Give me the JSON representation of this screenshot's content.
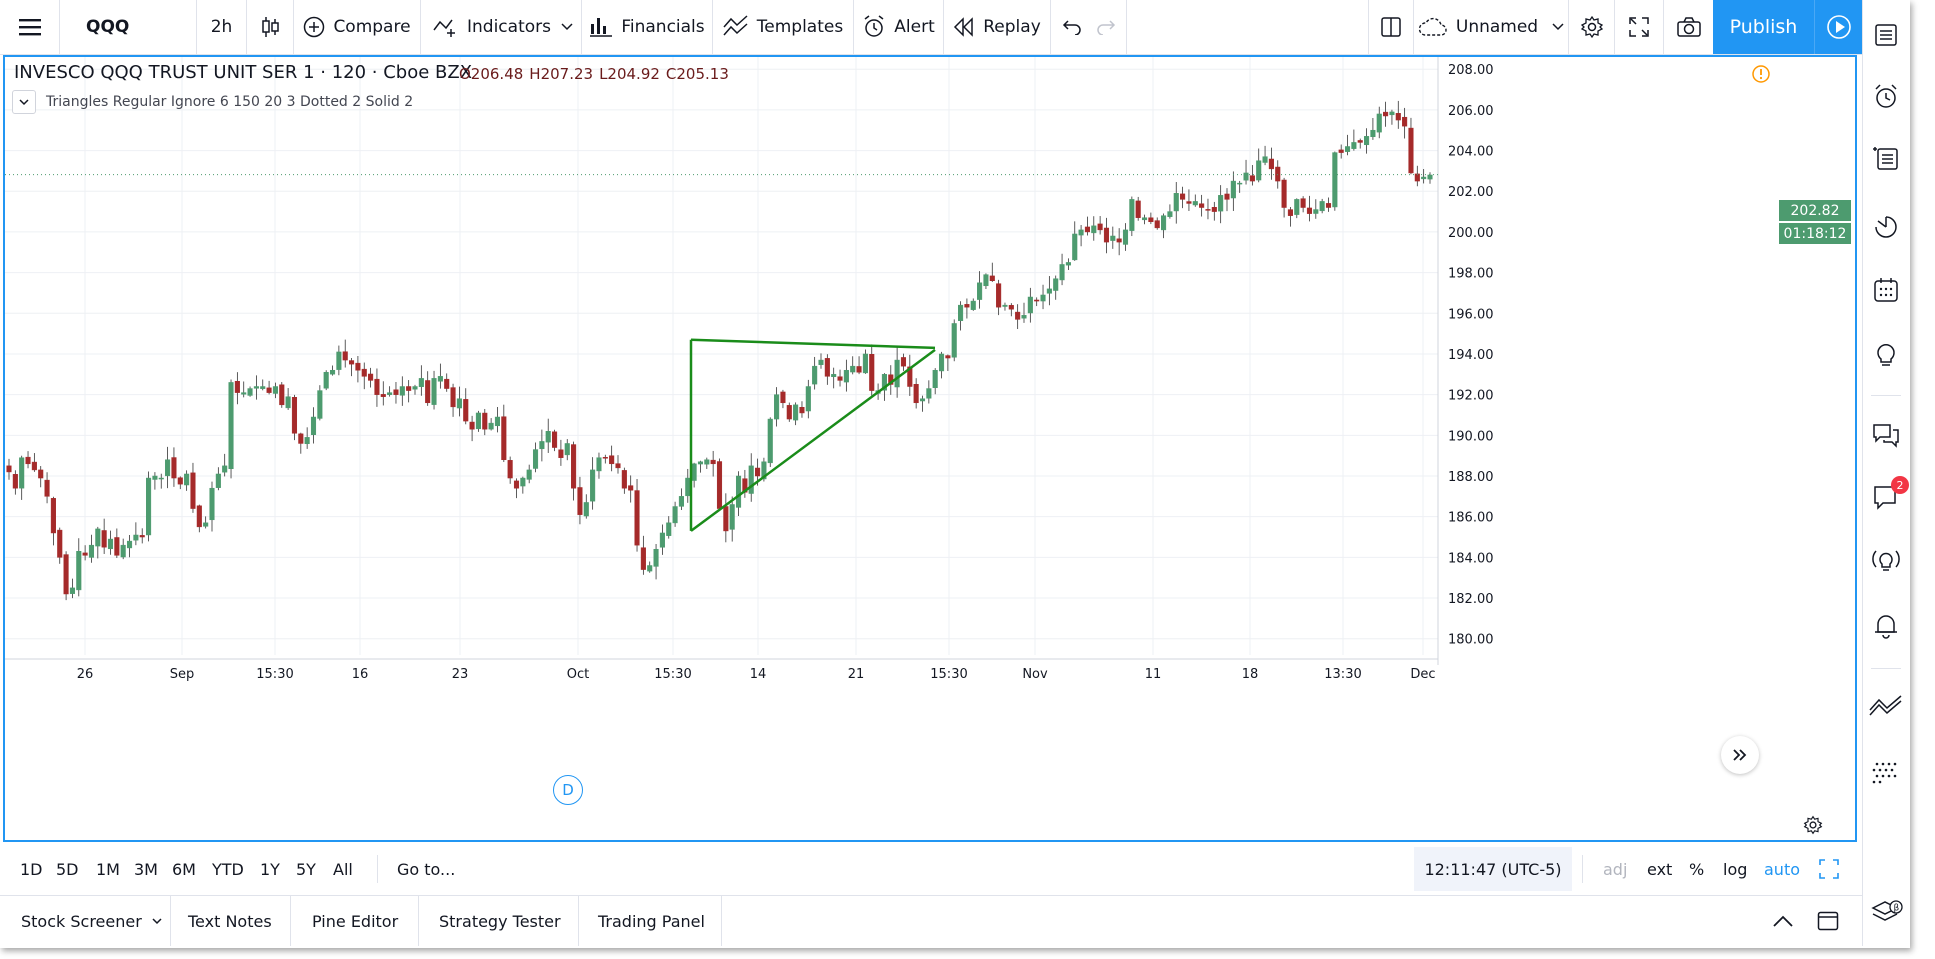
{
  "toolbar": {
    "symbol": "QQQ",
    "interval": "2h",
    "compare": "Compare",
    "indicators": "Indicators",
    "financials": "Financials",
    "templates": "Templates",
    "alert": "Alert",
    "replay": "Replay",
    "layout_name": "Unnamed",
    "publish": "Publish"
  },
  "legend": {
    "title": "INVESCO QQQ TRUST UNIT SER 1 · 120 · Cboe BZX",
    "open": "O206.48",
    "high": "H207.23",
    "low": "L204.92",
    "close": "C205.13",
    "indicator": "Triangles Regular Ignore 6 150 20 3 Dotted 2 Solid 2"
  },
  "price_tags": {
    "last_price": "202.82",
    "countdown": "01:18:12"
  },
  "markers": {
    "dividend": "D"
  },
  "colors": {
    "accent": "#2196f3",
    "up_candle": "#4d9b6f",
    "down_candle": "#a52a2a",
    "triangle": "#1a8c1a",
    "warning": "#ff9800",
    "badge": "#f23645"
  },
  "timeframes": [
    "1D",
    "5D",
    "1M",
    "3M",
    "6M",
    "YTD",
    "1Y",
    "5Y",
    "All"
  ],
  "goto": "Go to...",
  "clock": "12:11:47 (UTC-5)",
  "scale_options": {
    "adj": "adj",
    "ext": "ext",
    "percent": "%",
    "log": "log",
    "auto": "auto"
  },
  "bottom_tabs": [
    "Stock Screener",
    "Text Notes",
    "Pine Editor",
    "Strategy Tester",
    "Trading Panel"
  ],
  "sidebar": {
    "chat_badge": "2"
  },
  "chart_data": {
    "type": "candlestick",
    "y_axis_ticks": [
      "208.00",
      "206.00",
      "204.00",
      "202.00",
      "200.00",
      "198.00",
      "196.00",
      "194.00",
      "192.00",
      "190.00",
      "188.00",
      "186.00",
      "184.00",
      "182.00",
      "180.00"
    ],
    "ylim": [
      179.2,
      208.6
    ],
    "x_axis_ticks": [
      "26",
      "Sep",
      "15:30",
      "16",
      "23",
      "Oct",
      "15:30",
      "14",
      "21",
      "15:30",
      "Nov",
      "11",
      "18",
      "13:30",
      "Dec"
    ],
    "grid": true,
    "close_series": [
      188.2,
      187.4,
      188.9,
      188.6,
      188.3,
      187.9,
      187.0,
      185.2,
      184.0,
      182.2,
      182.5,
      184.3,
      184.1,
      184.6,
      185.4,
      184.5,
      184.9,
      184.1,
      184.6,
      184.8,
      185.1,
      185.0,
      187.9,
      188.0,
      187.9,
      188.8,
      187.9,
      187.6,
      188.1,
      186.4,
      185.5,
      185.7,
      187.4,
      188.1,
      188.5,
      192.6,
      192.1,
      192.1,
      192.3,
      192.4,
      192.4,
      192.1,
      192.4,
      191.5,
      191.9,
      190.1,
      189.6,
      189.9,
      190.9,
      192.2,
      193.1,
      193.2,
      194.1,
      193.7,
      193.5,
      193.2,
      192.9,
      192.7,
      192.0,
      191.9,
      192.1,
      192.0,
      192.4,
      192.2,
      192.4,
      192.8,
      191.6,
      192.8,
      192.9,
      192.3,
      191.4,
      191.8,
      190.7,
      190.3,
      191.1,
      190.3,
      190.6,
      190.9,
      188.8,
      187.9,
      187.4,
      187.9,
      188.3,
      189.3,
      189.7,
      190.2,
      189.4,
      188.9,
      189.6,
      187.4,
      186.1,
      186.7,
      188.3,
      188.9,
      188.9,
      188.6,
      188.4,
      187.4,
      187.3,
      184.6,
      183.4,
      183.6,
      184.4,
      185.2,
      185.7,
      186.5,
      187.0,
      187.9,
      188.6,
      188.7,
      188.8,
      188.6,
      186.4,
      185.3,
      186.6,
      188.0,
      187.2,
      188.5,
      188.0,
      188.7,
      190.8,
      192.0,
      191.6,
      190.8,
      191.5,
      191.1,
      192.4,
      193.4,
      193.7,
      192.9,
      193.0,
      192.7,
      193.2,
      193.4,
      193.1,
      194.0,
      192.2,
      192.2,
      193.0,
      192.5,
      193.7,
      193.4,
      192.4,
      191.6,
      191.8,
      192.3,
      193.2,
      194.0,
      193.8,
      195.5,
      196.4,
      196.3,
      196.6,
      197.5,
      197.9,
      197.6,
      196.3,
      196.4,
      196.2,
      195.7,
      195.9,
      196.8,
      196.6,
      196.9,
      197.2,
      197.7,
      198.4,
      198.5,
      199.9,
      200.1,
      200.0,
      200.3,
      200.1,
      199.5,
      199.8,
      199.5,
      200.1,
      201.6,
      200.7,
      200.7,
      200.5,
      200.2,
      200.8,
      201.0,
      201.9,
      201.6,
      201.4,
      201.5,
      201.2,
      201.1,
      201.0,
      201.8,
      201.6,
      202.5,
      202.4,
      202.9,
      202.5,
      203.5,
      203.7,
      203.1,
      202.5,
      201.2,
      200.8,
      201.6,
      201.2,
      200.9,
      201.1,
      201.5,
      201.2,
      203.9,
      203.9,
      204.2,
      204.4,
      204.4,
      204.7,
      205.0,
      205.8,
      205.7,
      205.9,
      205.5,
      205.2,
      202.9,
      202.5,
      202.7,
      202.8
    ],
    "triangle_pattern": {
      "apex": [
        "Oct 11",
        185.3
      ],
      "upper_start": [
        "Oct 11",
        194.7
      ],
      "upper_end": [
        "Oct 29",
        194.3
      ],
      "lower_end": [
        "Oct 29",
        194.2
      ]
    }
  }
}
